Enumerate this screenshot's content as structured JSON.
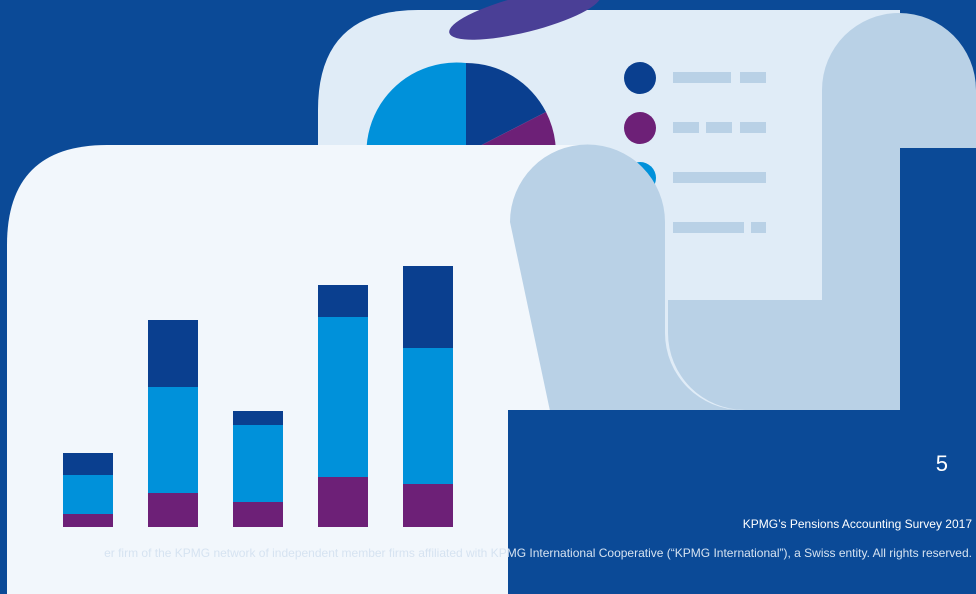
{
  "page": {
    "number": "5",
    "survey_title": "KPMG’s Pensions Accounting Survey 2017",
    "copyright": "er firm of the KPMG network of independent member firms affiliated with KPMG International Cooperative (“KPMG International”), a Swiss entity. All rights reserved."
  }
}
